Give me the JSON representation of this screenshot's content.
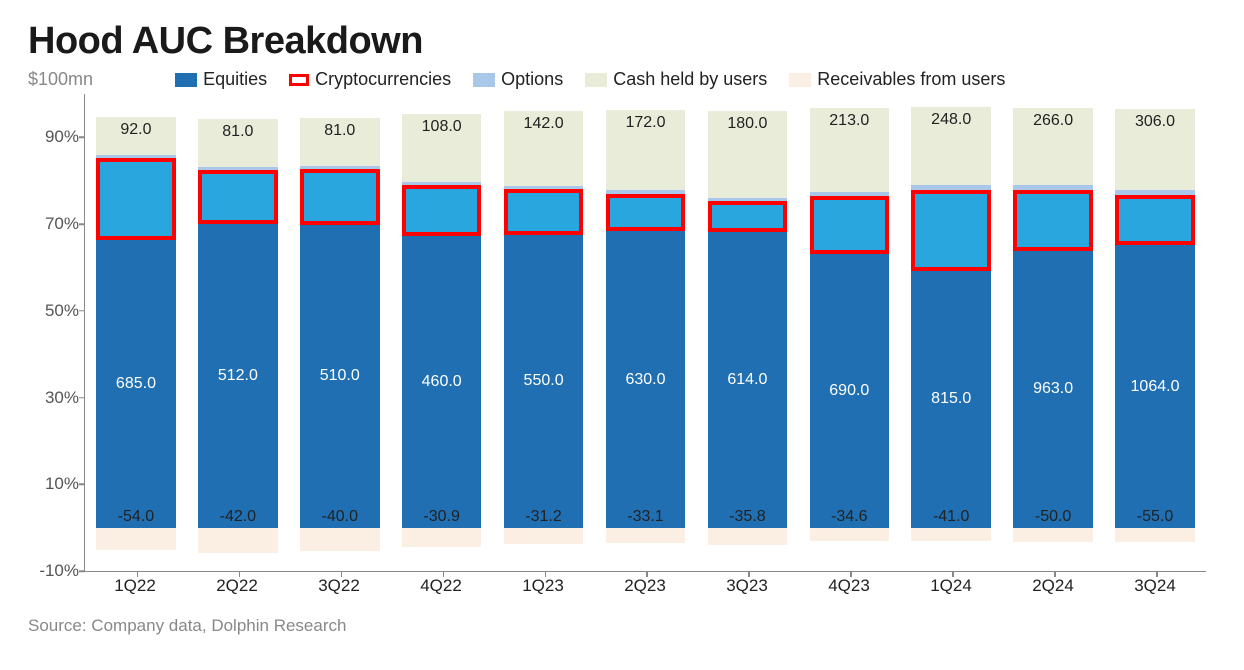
{
  "title": "Hood AUC Breakdown",
  "y_unit_label": "$100mn",
  "source": "Source:  Company data, Dolphin Research",
  "legend": [
    {
      "label": "Equities",
      "color": "#1f6fb2",
      "type": "fill"
    },
    {
      "label": "Cryptocurrencies",
      "color": "#ffffff",
      "border": "#ff0000",
      "type": "outline"
    },
    {
      "label": "Options",
      "color": "#a9c7e8",
      "type": "fill"
    },
    {
      "label": "Cash held by users",
      "color": "#e8ecd8",
      "type": "fill"
    },
    {
      "label": "Receivables from users",
      "color": "#faefe2",
      "type": "fill"
    }
  ],
  "chart": {
    "type": "stacked-bar-100pct",
    "y_axis": {
      "min": -10,
      "max": 100,
      "ticks": [
        -10,
        10,
        30,
        50,
        70,
        90
      ],
      "suffix": "%"
    },
    "segment_order_bottom_up": [
      "receivables",
      "equities",
      "crypto",
      "options",
      "cash"
    ],
    "colors": {
      "equities": "#1f6fb2",
      "crypto_fill": "#2aa6de",
      "crypto_border": "#ff0000",
      "options": "#a9c7e8",
      "cash": "#e8ecd8",
      "receivables": "#faefe2"
    },
    "label_colors": {
      "equities": "#ffffff",
      "cash": "#1a1a1a",
      "receivables": "#1a1a1a"
    },
    "periods": [
      {
        "label": "1Q22",
        "equities": 685.0,
        "crypto": 195.0,
        "options": 7.0,
        "cash": 92.0,
        "receivables": -54.0
      },
      {
        "label": "2Q22",
        "equities": 512.0,
        "crypto": 90.0,
        "options": 5.0,
        "cash": 81.0,
        "receivables": -42.0
      },
      {
        "label": "3Q22",
        "equities": 510.0,
        "crypto": 95.0,
        "options": 5.0,
        "cash": 81.0,
        "receivables": -40.0
      },
      {
        "label": "4Q22",
        "equities": 460.0,
        "crypto": 80.0,
        "options": 5.0,
        "cash": 108.0,
        "receivables": -30.9
      },
      {
        "label": "1Q23",
        "equities": 550.0,
        "crypto": 85.0,
        "options": 6.0,
        "cash": 142.0,
        "receivables": -31.2
      },
      {
        "label": "2Q23",
        "equities": 630.0,
        "crypto": 80.0,
        "options": 7.0,
        "cash": 172.0,
        "receivables": -33.1
      },
      {
        "label": "3Q23",
        "equities": 614.0,
        "crypto": 65.0,
        "options": 7.0,
        "cash": 180.0,
        "receivables": -35.8
      },
      {
        "label": "4Q23",
        "equities": 690.0,
        "crypto": 145.0,
        "options": 10.0,
        "cash": 213.0,
        "receivables": -34.6
      },
      {
        "label": "1Q24",
        "equities": 815.0,
        "crypto": 260.0,
        "options": 15.0,
        "cash": 248.0,
        "receivables": -41.0
      },
      {
        "label": "2Q24",
        "equities": 963.0,
        "crypto": 210.0,
        "options": 18.0,
        "cash": 266.0,
        "receivables": -50.0
      },
      {
        "label": "3Q24",
        "equities": 1064.0,
        "crypto": 190.0,
        "options": 20.0,
        "cash": 306.0,
        "receivables": -55.0
      }
    ]
  }
}
